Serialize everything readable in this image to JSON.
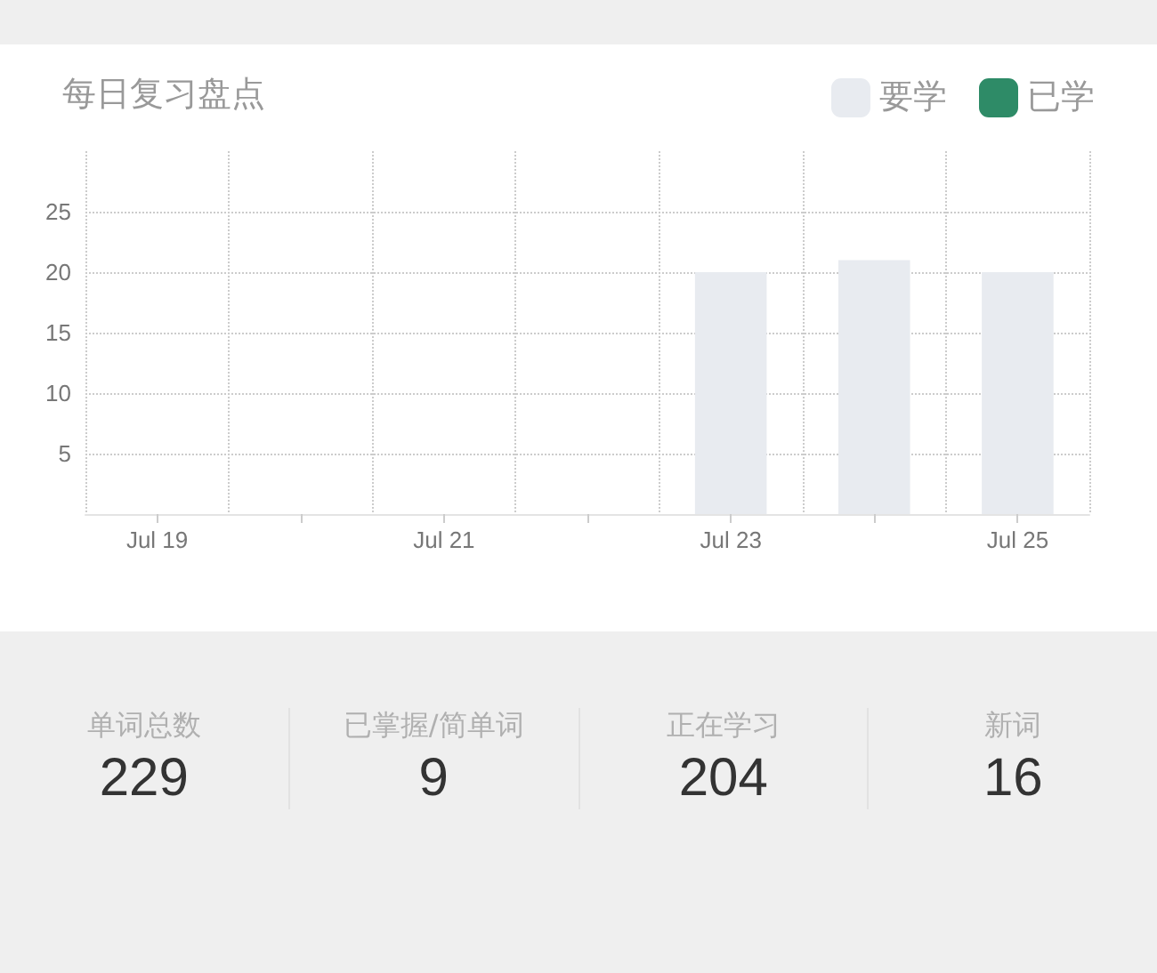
{
  "chart_data": {
    "type": "bar",
    "title": "每日复习盘点",
    "categories": [
      "Jul 19",
      null,
      "Jul 21",
      null,
      "Jul 23",
      null,
      "Jul 25"
    ],
    "series": [
      {
        "name": "要学",
        "color": "#e8ebf0",
        "values": [
          null,
          null,
          null,
          null,
          20,
          21,
          20
        ]
      },
      {
        "name": "已学",
        "color": "#2e8b67",
        "values": [
          null,
          null,
          null,
          null,
          null,
          null,
          null
        ]
      }
    ],
    "ylim": [
      0,
      30
    ],
    "yticks": [
      5,
      10,
      15,
      20,
      25
    ],
    "grid": true,
    "legend": "top right",
    "annotations": [
      "单词总数",
      "229",
      "已掌握/简单词",
      "9",
      "正在学习",
      "204",
      "新词",
      "16"
    ]
  }
}
